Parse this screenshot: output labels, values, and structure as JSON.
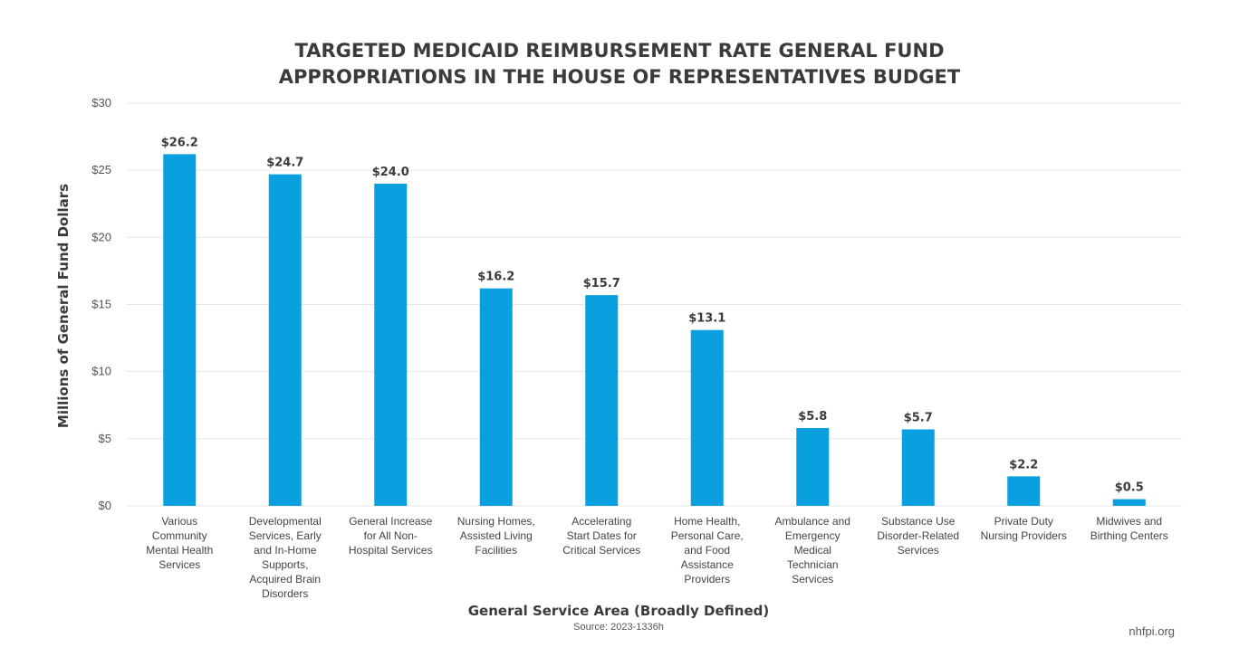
{
  "chart_data": {
    "type": "bar",
    "title_lines": [
      "TARGETED MEDICAID REIMBURSEMENT RATE GENERAL FUND",
      "APPROPRIATIONS IN THE HOUSE OF REPRESENTATIVES BUDGET"
    ],
    "ylabel": "Millions of General Fund Dollars",
    "xlabel": "General Service Area (Broadly Defined)",
    "source": "Source: 2023-1336h",
    "credit": "nhfpi.org",
    "ylim": [
      0,
      30
    ],
    "yticks": [
      {
        "value": 0,
        "label": "$0"
      },
      {
        "value": 5,
        "label": "$5"
      },
      {
        "value": 10,
        "label": "$10"
      },
      {
        "value": 15,
        "label": "$15"
      },
      {
        "value": 20,
        "label": "$20"
      },
      {
        "value": 25,
        "label": "$25"
      },
      {
        "value": 30,
        "label": "$30"
      }
    ],
    "grid": true,
    "bar_color": "#0a9fdf",
    "categories": [
      [
        "Various",
        "Community",
        "Mental Health",
        "Services"
      ],
      [
        "Developmental",
        "Services, Early",
        "and In-Home",
        "Supports,",
        "Acquired Brain",
        "Disorders"
      ],
      [
        "General Increase",
        "for All Non-",
        "Hospital Services"
      ],
      [
        "Nursing Homes,",
        "Assisted Living",
        "Facilities"
      ],
      [
        "Accelerating",
        "Start Dates for",
        "Critical Services"
      ],
      [
        "Home Health,",
        "Personal Care,",
        "and Food",
        "Assistance",
        "Providers"
      ],
      [
        "Ambulance and",
        "Emergency",
        "Medical",
        "Technician",
        "Services"
      ],
      [
        "Substance Use",
        "Disorder-Related",
        "Services"
      ],
      [
        "Private Duty",
        "Nursing Providers"
      ],
      [
        "Midwives and",
        "Birthing Centers"
      ]
    ],
    "values": [
      26.2,
      24.7,
      24.0,
      16.2,
      15.7,
      13.1,
      5.8,
      5.7,
      2.2,
      0.5
    ],
    "value_labels": [
      "$26.2",
      "$24.7",
      "$24.0",
      "$16.2",
      "$15.7",
      "$13.1",
      "$5.8",
      "$5.7",
      "$2.2",
      "$0.5"
    ]
  }
}
